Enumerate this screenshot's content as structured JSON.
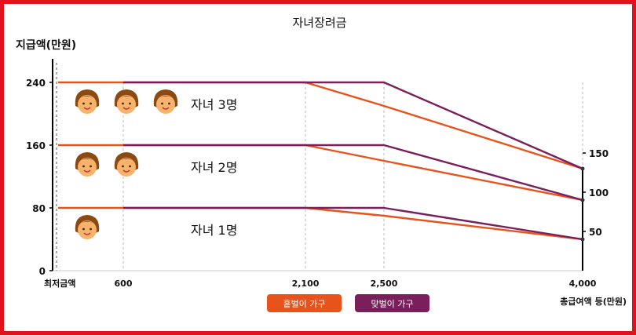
{
  "chart_data": {
    "type": "line",
    "title": "자녀장려금",
    "ylabel": "지급액(만원)",
    "xlabel": "총급여액 등(만원)",
    "y_ticks": [
      "0",
      "80",
      "160",
      "240"
    ],
    "x_ticks": [
      "최저금액",
      "600",
      "2,100",
      "2,500",
      "4,000"
    ],
    "right_ticks": [
      "50",
      "100",
      "150"
    ],
    "x_breaks": [
      "최저금액",
      "600",
      "2,100",
      "2,500",
      "4,000"
    ],
    "ylim": [
      0,
      240
    ],
    "groups": [
      {
        "label": "자녀 3명",
        "children": 3,
        "single": [
          240,
          240,
          240,
          210,
          130
        ],
        "dual": [
          null,
          240,
          240,
          240,
          130
        ]
      },
      {
        "label": "자녀 2명",
        "children": 2,
        "single": [
          160,
          160,
          160,
          140,
          90
        ],
        "dual": [
          null,
          160,
          160,
          160,
          90
        ]
      },
      {
        "label": "자녀 1명",
        "children": 1,
        "single": [
          80,
          80,
          80,
          70,
          40
        ],
        "dual": [
          null,
          80,
          80,
          80,
          40
        ]
      }
    ],
    "legend": [
      {
        "key": "single",
        "label": "홑벌이 가구",
        "color": "#e8531c"
      },
      {
        "key": "dual",
        "label": "맞벌이 가구",
        "color": "#7a1f5c"
      }
    ],
    "colors": {
      "frame": "#e0121c",
      "single": "#e8531c",
      "dual": "#7a1f5c",
      "axis": "#000000",
      "face": "#f7b36b",
      "hair": "#8b4a12"
    }
  }
}
